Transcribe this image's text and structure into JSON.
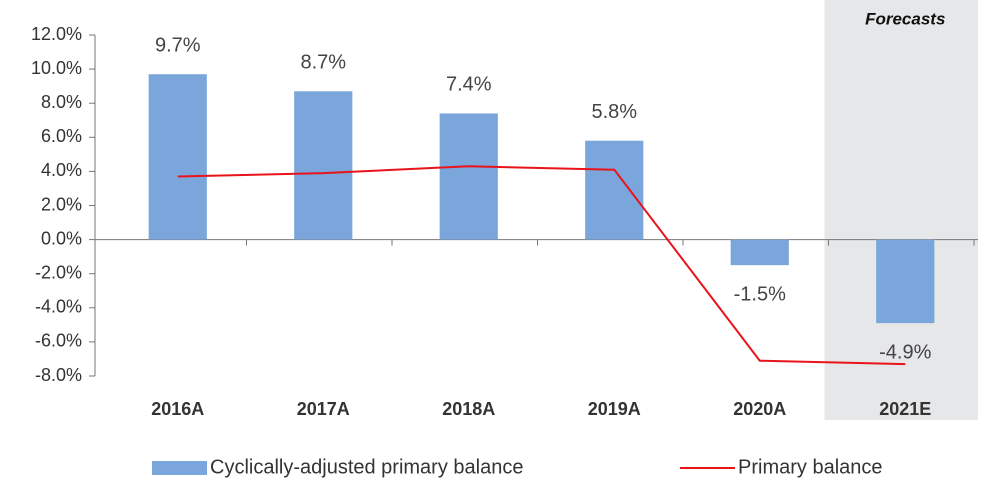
{
  "chart_data": {
    "type": "bar",
    "categories": [
      "2016A",
      "2017A",
      "2018A",
      "2019A",
      "2020A",
      "2021E"
    ],
    "series": [
      {
        "name": "Cyclically-adjusted primary balance",
        "type": "bar",
        "color": "#7aa6dc",
        "values": [
          9.7,
          8.7,
          7.4,
          5.8,
          -1.5,
          -4.9
        ],
        "value_labels": [
          "9.7%",
          "8.7%",
          "7.4%",
          "5.8%",
          "-1.5%",
          "-4.9%"
        ]
      },
      {
        "name": "Primary balance",
        "type": "line",
        "color": "#e8141a",
        "values": [
          3.7,
          3.9,
          4.3,
          4.1,
          -7.1,
          -7.3
        ]
      }
    ],
    "ylim": [
      -8,
      12
    ],
    "yticks": [
      {
        "value": -8,
        "label": "-8.0%"
      },
      {
        "value": -6,
        "label": "-6.0%"
      },
      {
        "value": -4,
        "label": "-4.0%"
      },
      {
        "value": -2,
        "label": "-2.0%"
      },
      {
        "value": 0,
        "label": "0.0%"
      },
      {
        "value": 2,
        "label": "2.0%"
      },
      {
        "value": 4,
        "label": "4.0%"
      },
      {
        "value": 6,
        "label": "6.0%"
      },
      {
        "value": 8,
        "label": "8.0%"
      },
      {
        "value": 10,
        "label": "10.0%"
      },
      {
        "value": 12,
        "label": "12.0%"
      }
    ],
    "highlight": {
      "label": "Forecasts",
      "category": "2021E",
      "color": "#e6e7e9"
    },
    "legend": "bottom"
  }
}
